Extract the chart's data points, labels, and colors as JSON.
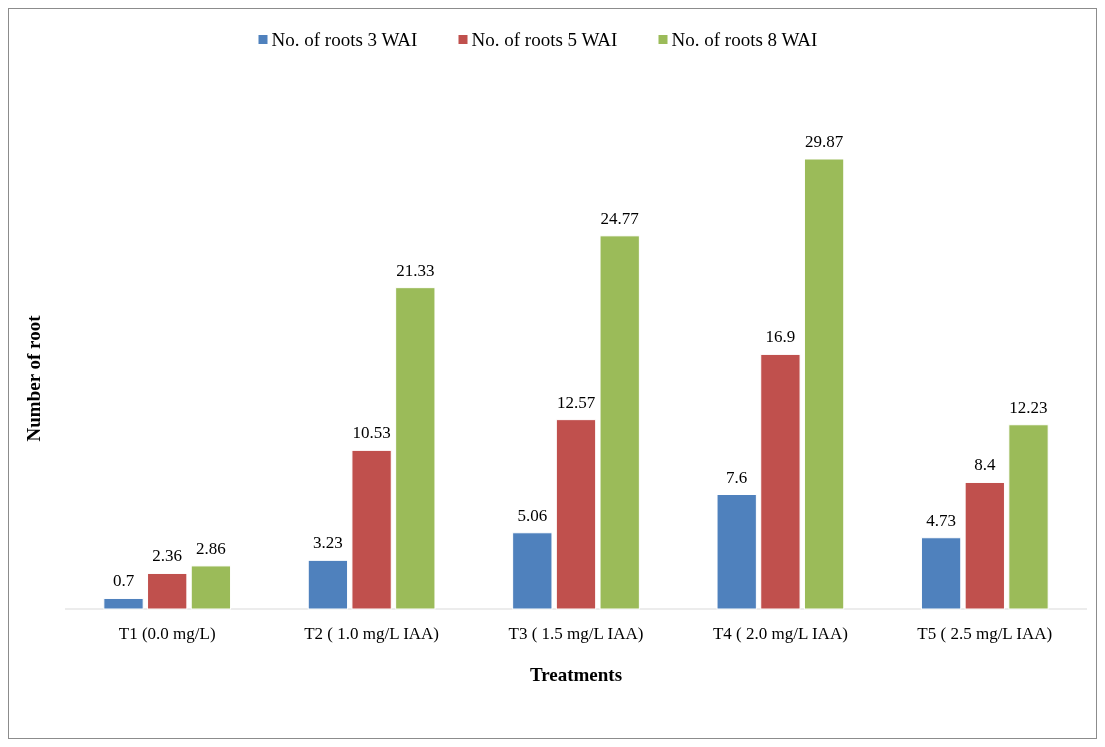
{
  "chart_data": {
    "type": "bar",
    "xlabel": "Treatments",
    "ylabel": "Number of root",
    "categories": [
      "T1 (0.0 mg/L)",
      "T2 ( 1.0 mg/L IAA)",
      "T3 ( 1.5 mg/L IAA)",
      "T4 ( 2.0 mg/L IAA)",
      "T5 ( 2.5 mg/L IAA)"
    ],
    "series": [
      {
        "name": "No. of roots 3 WAI",
        "color": "#4f81bd",
        "values": [
          0.7,
          3.23,
          5.06,
          7.6,
          4.73
        ]
      },
      {
        "name": "No. of roots 5 WAI",
        "color": "#c0504d",
        "values": [
          2.36,
          10.53,
          12.57,
          16.9,
          8.4
        ]
      },
      {
        "name": "No. of roots 8 WAI",
        "color": "#9bbb59",
        "values": [
          2.86,
          21.33,
          24.77,
          29.87,
          12.23
        ]
      }
    ],
    "data_labels": true,
    "legend": "top",
    "grid": false,
    "tick_labels": "x"
  }
}
